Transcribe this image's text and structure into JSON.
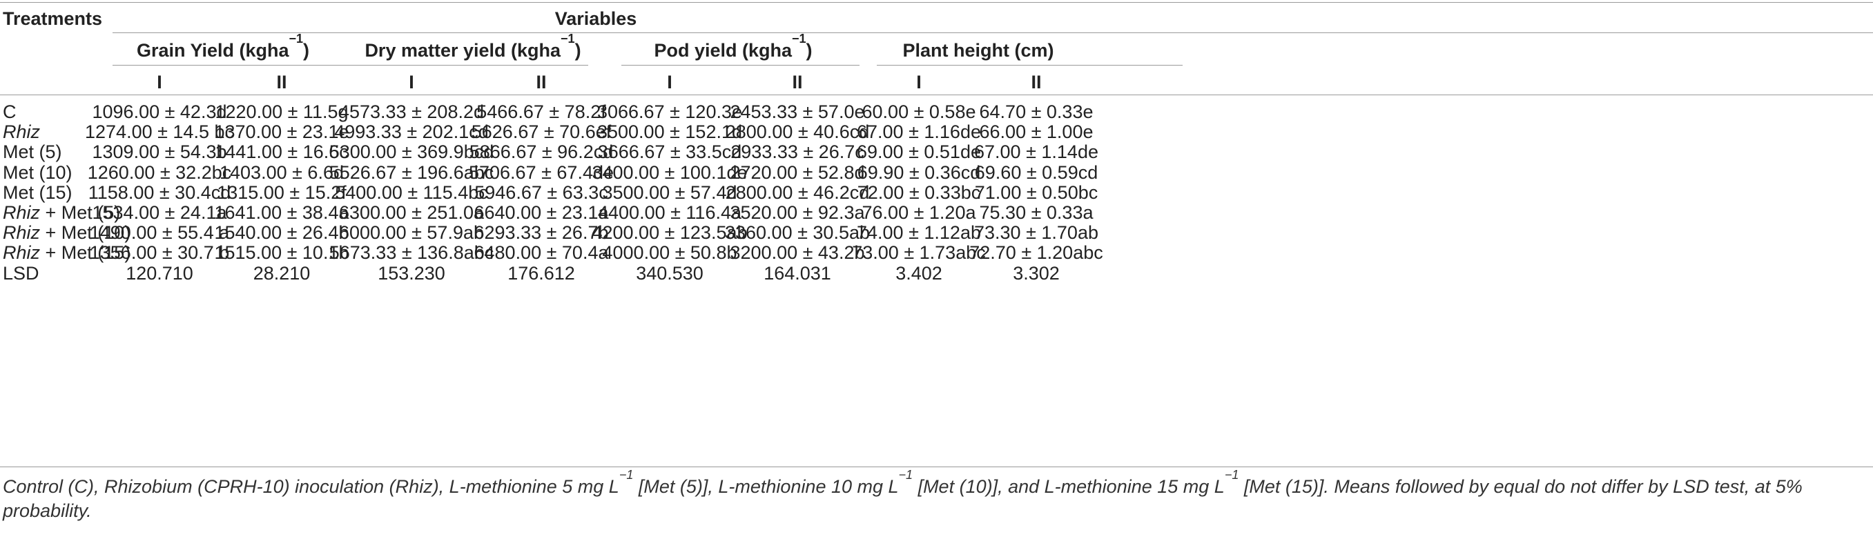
{
  "table": {
    "treatments_header": "Treatments",
    "variables_header": "Variables",
    "groups": [
      {
        "label": "Grain Yield (kgha",
        "sup": "−1",
        "suffix": ")"
      },
      {
        "label": "Dry matter yield (kgha",
        "sup": "−1",
        "suffix": ")"
      },
      {
        "label": "Pod yield (kgha",
        "sup": "−1",
        "suffix": ")"
      },
      {
        "label": "Plant height (cm)",
        "sup": "",
        "suffix": ""
      }
    ],
    "subheaders": [
      "I",
      "II",
      "I",
      "II",
      "I",
      "II",
      "I",
      "II"
    ],
    "rows": [
      {
        "name": "C",
        "name_italic": "",
        "name_rest": "",
        "cells": [
          "1096.00 ± 42.3d",
          "1220.00 ± 11.5g",
          "4573.33 ± 208.2d",
          "5466.67 ± 78.2f",
          "3066.67 ± 120.3e",
          "2453.33 ± 57.0e",
          "60.00 ± 0.58e",
          "64.70 ± 0.33e"
        ]
      },
      {
        "name": "",
        "name_italic": "Rhiz",
        "name_rest": "",
        "cells": [
          "1274.00 ± 14.5 bc",
          "1370.00 ± 23.1e",
          "4993.33 ± 202.1cd",
          "5626.67 ± 70.6ef",
          "3500.00 ± 152.1d",
          "2800.00 ± 40.6cd",
          "67.00 ± 1.16de",
          "66.00 ± 1.00e"
        ]
      },
      {
        "name": "Met (5)",
        "name_italic": "",
        "name_rest": "",
        "cells": [
          "1309.00 ± 54.3b",
          "1441.00 ± 16.6c",
          "5300.00 ± 369.9bcd",
          "5866.67 ± 96.2cd",
          "3666.67 ± 33.5cd",
          "2933.33 ± 26.7c",
          "69.00 ± 0.51de",
          "67.00 ± 1.14de"
        ]
      },
      {
        "name": "Met (10)",
        "name_italic": "",
        "name_rest": "",
        "cells": [
          "1260.00 ± 32.2bc",
          "1403.00 ± 6.6d",
          "5526.67 ± 196.6abc",
          "5706.67 ± 67.4de",
          "3400.00 ± 100.1de",
          "2720.00 ± 52.8d",
          "69.90 ± 0.36cd",
          "69.60 ± 0.59cd"
        ]
      },
      {
        "name": "Met (15)",
        "name_italic": "",
        "name_rest": "",
        "cells": [
          "1158.00 ± 30.4cd",
          "1315.00 ± 15.2f",
          "5400.00 ± 115.4bc",
          "5946.67 ± 63.3c",
          "3500.00 ± 57.4d",
          "2800.00 ± 46.2cd",
          "72.00 ± 0.33bc",
          "71.00 ± 0.50bc"
        ]
      },
      {
        "name": "",
        "name_italic": "Rhiz",
        "name_rest": " + Met (5)",
        "cells": [
          "1534.00 ± 24.1a",
          "1641.00 ± 38.4a",
          "6300.00 ± 251.0a",
          "6640.00 ± 23.1a",
          "4400.00 ± 116.4a",
          "3520.00 ± 92.3a",
          "76.00 ± 1.20a",
          "75.30 ± 0.33a"
        ]
      },
      {
        "name": "",
        "name_italic": "Rhiz",
        "name_rest": " + Met (10)",
        "cells": [
          "1490.00 ± 55.4 a",
          "1540.00 ± 26.4b",
          "6000.00 ± 57.9ab",
          "6293.33 ± 26.7b",
          "4200.00 ± 123.5ab",
          "3360.00 ± 30.5ab",
          "74.00 ± 1.12ab",
          "73.30 ± 1.70ab"
        ]
      },
      {
        "name": "",
        "name_italic": "Rhiz",
        "name_rest": " + Met (15)",
        "cells": [
          "1356.00 ± 30.7 b",
          "1515.00 ± 10.1b",
          "5673.33 ± 136.8abc",
          "6480.00 ± 70.4a",
          "4000.00 ± 50.8b",
          "3200.00 ± 43.2b",
          "73.00 ± 1.73abc",
          "72.70 ± 1.20abc"
        ]
      },
      {
        "name": "LSD",
        "name_italic": "",
        "name_rest": "",
        "cells": [
          "120.710",
          "28.210",
          "153.230",
          "176.612",
          "340.530",
          "164.031",
          "3.402",
          "3.302"
        ]
      }
    ]
  },
  "footnote": {
    "line1_a": "Control (C), Rhizobium (CPRH-10) inoculation (Rhiz), L-methionine 5 mg L",
    "sup1": "−1",
    "line1_b": " [Met (5)], L-methionine 10 mg L",
    "sup2": "−1",
    "line1_c": " [Met (10)], and L-methionine 15 mg L",
    "sup3": "−1",
    "line1_d": " [Met (15)]. Means followed by equal do not differ by LSD test, at 5% probability."
  }
}
